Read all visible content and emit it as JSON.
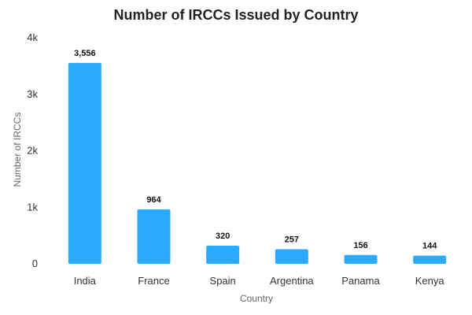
{
  "chart_data": {
    "type": "bar",
    "title": "Number of IRCCs Issued by Country",
    "xlabel": "Country",
    "ylabel": "Number of IRCCs",
    "categories": [
      "India",
      "France",
      "Spain",
      "Argentina",
      "Panama",
      "Kenya"
    ],
    "values": [
      3556,
      964,
      320,
      257,
      156,
      144
    ],
    "data_labels": [
      "3,556",
      "964",
      "320",
      "257",
      "156",
      "144"
    ],
    "ylim": [
      0,
      4000
    ],
    "yticks": [
      0,
      1000,
      2000,
      3000,
      4000
    ],
    "ytick_labels": [
      "0",
      "1k",
      "2k",
      "3k",
      "4k"
    ],
    "grid": false,
    "legend": "none",
    "bar_color": "#29aaff"
  }
}
